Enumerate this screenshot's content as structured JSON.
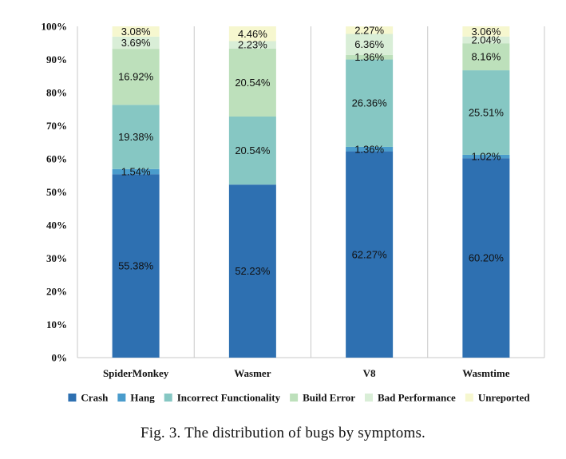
{
  "caption": "Fig. 3.  The distribution of bugs by symptoms.",
  "chart_data": {
    "type": "bar",
    "stacked": true,
    "percent": true,
    "categories": [
      "SpiderMonkey",
      "Wasmer",
      "V8",
      "Wasmtime"
    ],
    "ylim": [
      0,
      100
    ],
    "yticks": [
      "0%",
      "10%",
      "20%",
      "30%",
      "40%",
      "50%",
      "60%",
      "70%",
      "80%",
      "90%",
      "100%"
    ],
    "grid": "vertical-separators",
    "legend_position": "bottom",
    "series": [
      {
        "name": "Crash",
        "color": "#2e70b1",
        "values": [
          55.38,
          52.23,
          62.27,
          60.2
        ],
        "labels": [
          "55.38%",
          "52.23%",
          "62.27%",
          "60.20%"
        ]
      },
      {
        "name": "Hang",
        "color": "#4a9ccc",
        "values": [
          1.54,
          0,
          1.36,
          1.02
        ],
        "labels": [
          "1.54%",
          "",
          "1.36%",
          "1.02%"
        ]
      },
      {
        "name": "Incorrect Functionality",
        "color": "#86c7c3",
        "values": [
          19.38,
          20.54,
          26.36,
          25.51
        ],
        "labels": [
          "19.38%",
          "20.54%",
          "26.36%",
          "25.51%"
        ]
      },
      {
        "name": "Build Error",
        "color": "#bde0bb",
        "values": [
          16.92,
          20.54,
          1.36,
          8.16
        ],
        "labels": [
          "16.92%",
          "20.54%",
          "1.36%",
          "8.16%"
        ]
      },
      {
        "name": "Bad Performance",
        "color": "#d9eed7",
        "values": [
          3.69,
          2.23,
          6.36,
          2.04
        ],
        "labels": [
          "3.69%",
          "2.23%",
          "6.36%",
          "2.04%"
        ]
      },
      {
        "name": "Unreported",
        "color": "#f6f7cf",
        "values": [
          3.08,
          4.46,
          2.27,
          3.06
        ],
        "labels": [
          "3.08%",
          "4.46%",
          "2.27%",
          "3.06%"
        ]
      }
    ]
  }
}
